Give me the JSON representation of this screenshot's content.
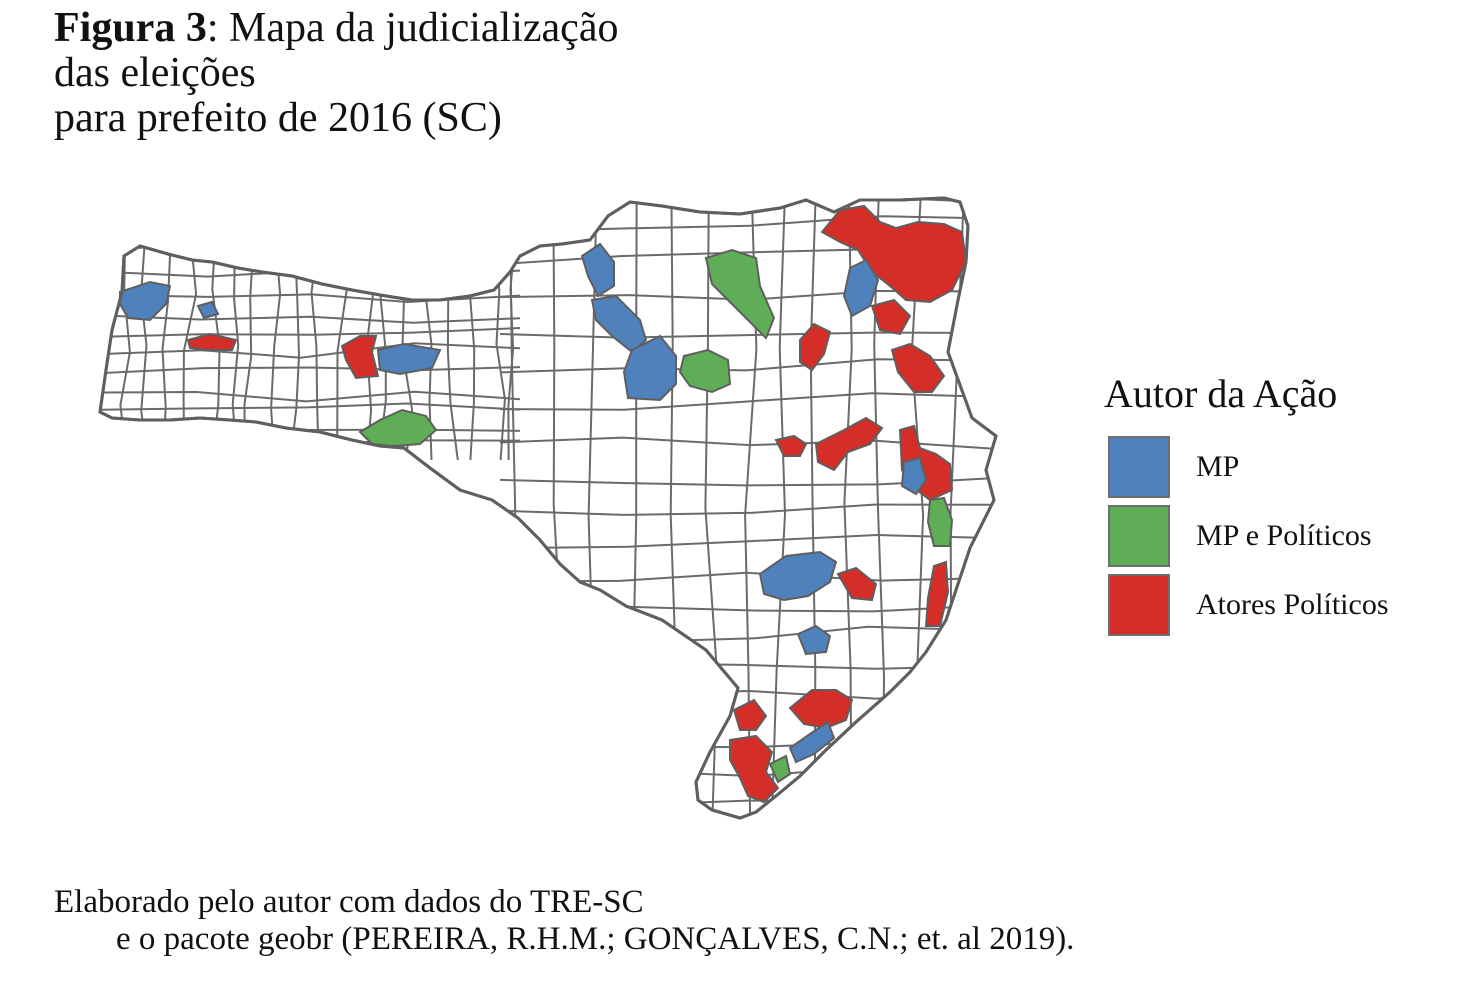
{
  "figure": {
    "label": "Figura 3",
    "title_rest": ": Mapa da judicialização",
    "title_line2": "das eleições",
    "title_line3": "para prefeito de 2016 (SC)"
  },
  "legend": {
    "title": "Autor da Ação",
    "items": [
      {
        "label": "MP",
        "color": "#4f81bd"
      },
      {
        "label": "MP e Políticos",
        "color": "#5fae57"
      },
      {
        "label": "Atores Políticos",
        "color": "#d52d27"
      }
    ]
  },
  "map": {
    "state": "SC",
    "year": 2016,
    "fill_default": "#ffffff",
    "border_color": "#5f5f5f"
  },
  "caption": {
    "line1": "Elaborado pelo autor com dados do TRE-SC",
    "line2": "e o pacote geobr (PEREIRA, R.H.M.; GONÇALVES, C.N.; et. al 2019)."
  }
}
